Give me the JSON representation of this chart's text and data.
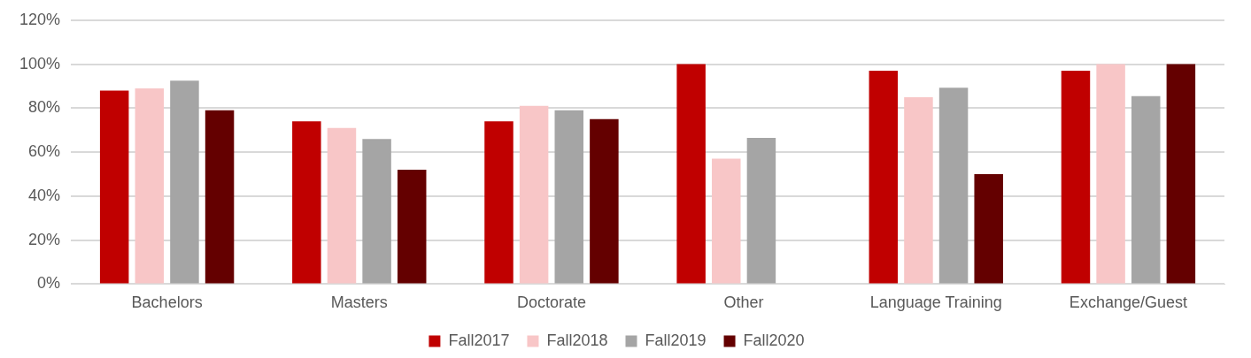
{
  "chart_data": {
    "type": "bar",
    "categories": [
      "Bachelors",
      "Masters",
      "Doctorate",
      "Other",
      "Language Training",
      "Exchange/Guest"
    ],
    "series": [
      {
        "name": "Fall2017",
        "color": "#c00000",
        "values": [
          88,
          74,
          74,
          100,
          97,
          97
        ]
      },
      {
        "name": "Fall2018",
        "color": "#f8c6c7",
        "values": [
          89,
          71,
          81,
          57,
          85,
          100
        ]
      },
      {
        "name": "Fall2019",
        "color": "#a5a5a5",
        "values": [
          92.5,
          66,
          79,
          66.5,
          89.3,
          85.5
        ]
      },
      {
        "name": "Fall2020",
        "color": "#640000",
        "values": [
          79,
          52,
          75,
          null,
          50,
          100
        ]
      }
    ],
    "ylim": [
      0,
      120
    ],
    "yticks": [
      {
        "value": 0,
        "label": "0%"
      },
      {
        "value": 20,
        "label": "20%"
      },
      {
        "value": 40,
        "label": "40%"
      },
      {
        "value": 60,
        "label": "60%"
      },
      {
        "value": 80,
        "label": "80%"
      },
      {
        "value": 100,
        "label": "100%"
      },
      {
        "value": 120,
        "label": "120%"
      }
    ],
    "grid": "y",
    "legend": "bottom"
  }
}
